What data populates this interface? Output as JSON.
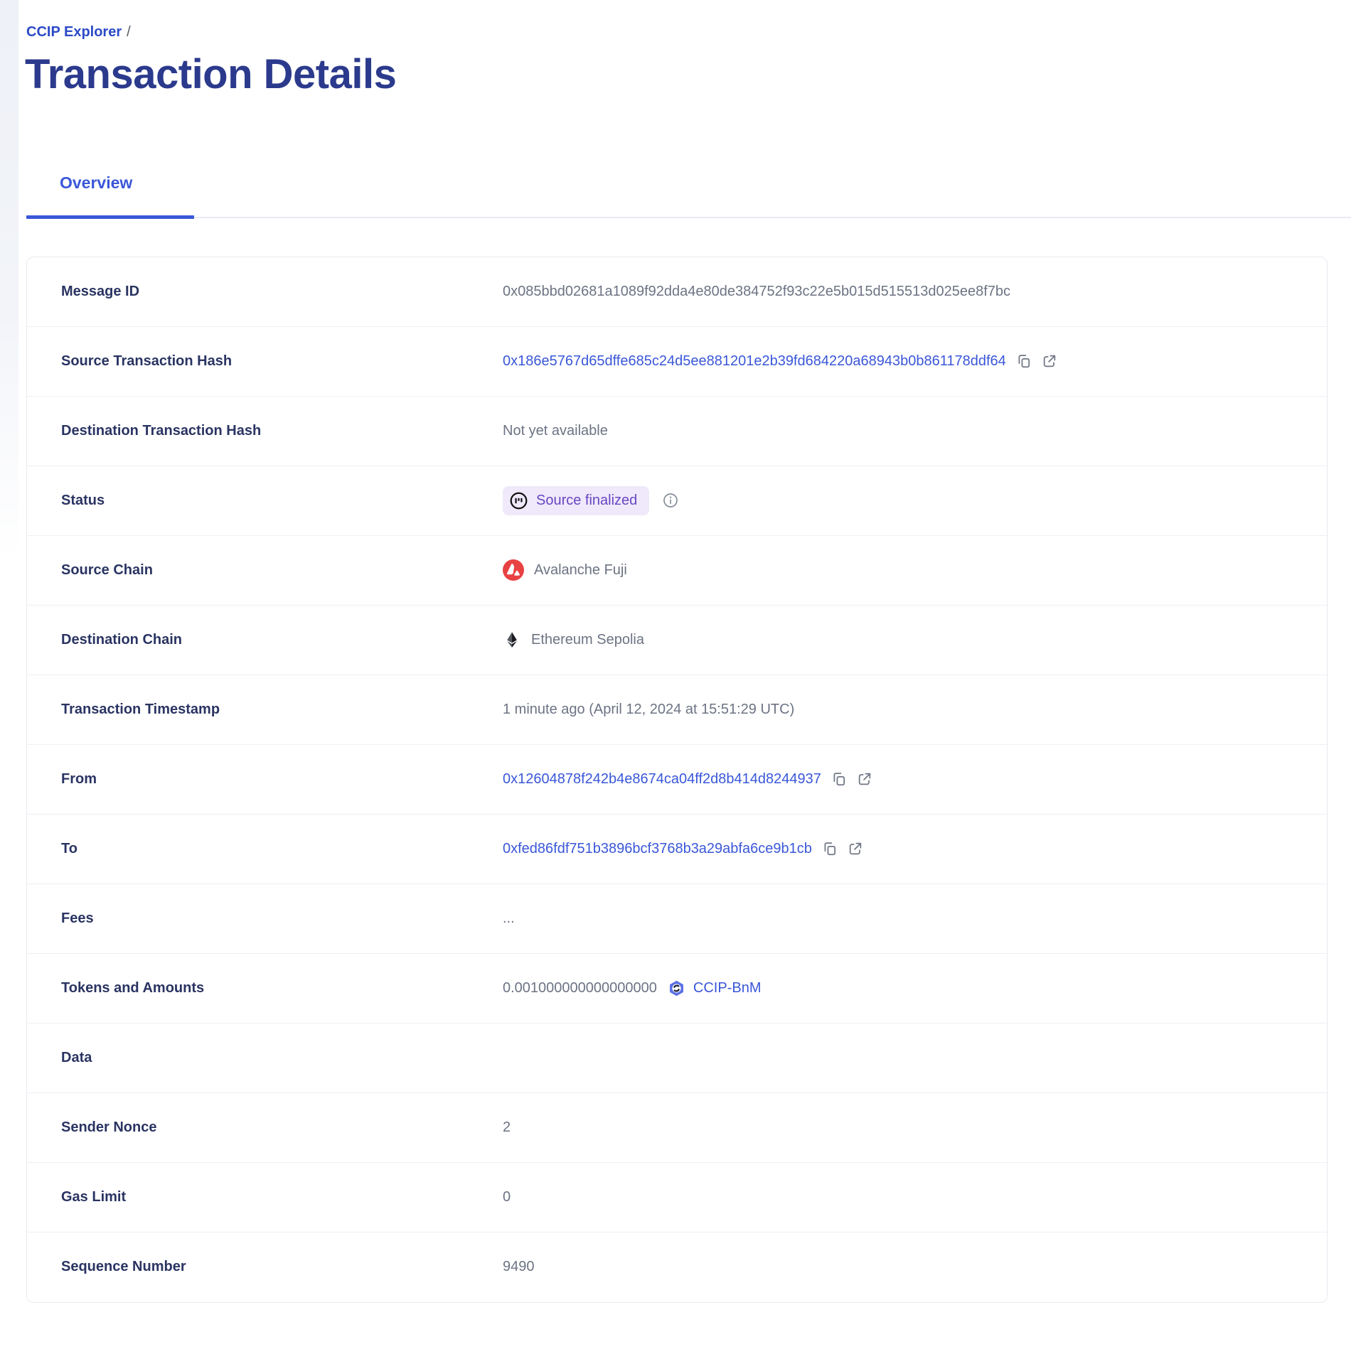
{
  "breadcrumb": {
    "link_label": "CCIP Explorer",
    "separator": "/"
  },
  "header": {
    "title": "Transaction Details"
  },
  "tabs": [
    {
      "label": "Overview",
      "active": true
    }
  ],
  "colors": {
    "link_blue": "#3a57d8",
    "heading_navy": "#2b3a8c",
    "label_navy": "#2a3462",
    "value_gray": "#6c7383",
    "badge_bg": "#efe9fb",
    "badge_text": "#6746c2",
    "avalanche_red": "#e84142"
  },
  "icons": {
    "copy": "copy-icon",
    "external": "external-link-icon",
    "info": "info-icon",
    "progress": "status-progress-icon",
    "avalanche": "avalanche-logo-icon",
    "ethereum": "ethereum-logo-icon",
    "ccip-bnm": "ccip-bnm-token-icon"
  },
  "table": {
    "rows": [
      {
        "label": "Message ID",
        "type": "text",
        "value": "0x085bbd02681a1089f92dda4e80de384752f93c22e5b015d515513d025ee8f7bc"
      },
      {
        "label": "Source Transaction Hash",
        "type": "link",
        "value": "0x186e5767d65dffe685c24d5ee881201e2b39fd684220a68943b0b861178ddf64"
      },
      {
        "label": "Destination Transaction Hash",
        "type": "text",
        "value": "Not yet available"
      },
      {
        "label": "Status",
        "type": "status",
        "value": "Source finalized"
      },
      {
        "label": "Source Chain",
        "type": "chain",
        "value": "Avalanche Fuji",
        "chain_icon": "avalanche"
      },
      {
        "label": "Destination Chain",
        "type": "chain",
        "value": "Ethereum Sepolia",
        "chain_icon": "ethereum"
      },
      {
        "label": "Transaction Timestamp",
        "type": "text",
        "value": "1 minute ago (April 12, 2024 at 15:51:29 UTC)"
      },
      {
        "label": "From",
        "type": "link",
        "value": "0x12604878f242b4e8674ca04ff2d8b414d8244937"
      },
      {
        "label": "To",
        "type": "link",
        "value": "0xfed86fdf751b3896bcf3768b3a29abfa6ce9b1cb"
      },
      {
        "label": "Fees",
        "type": "text",
        "value": "..."
      },
      {
        "label": "Tokens and Amounts",
        "type": "token",
        "amount": "0.001000000000000000",
        "token": "CCIP-BnM"
      },
      {
        "label": "Data",
        "type": "empty",
        "value": ""
      },
      {
        "label": "Sender Nonce",
        "type": "text",
        "value": "2"
      },
      {
        "label": "Gas Limit",
        "type": "text",
        "value": "0"
      },
      {
        "label": "Sequence Number",
        "type": "text",
        "value": "9490"
      }
    ]
  }
}
